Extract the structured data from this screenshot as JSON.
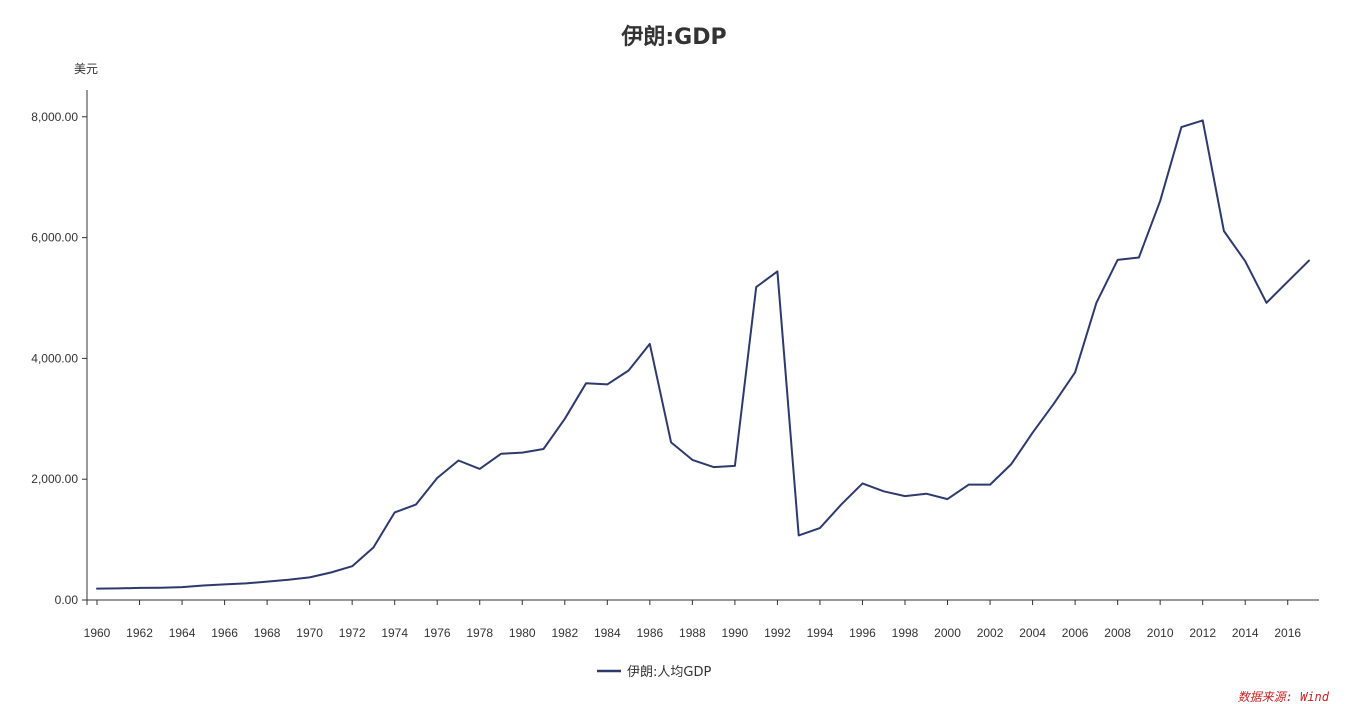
{
  "chart_data": {
    "type": "line",
    "title": "伊朗:GDP",
    "ylabel": "美元",
    "xlabel": "",
    "ylim": [
      0,
      8400
    ],
    "yticks": [
      0,
      2000,
      4000,
      6000,
      8000
    ],
    "ytick_labels": [
      "0.00",
      "2,000.00",
      "4,000.00",
      "6,000.00",
      "8,000.00"
    ],
    "xlim": [
      1960,
      2017
    ],
    "xticks": [
      1960,
      1962,
      1964,
      1966,
      1968,
      1970,
      1972,
      1974,
      1976,
      1978,
      1980,
      1982,
      1984,
      1986,
      1988,
      1990,
      1992,
      1994,
      1996,
      1998,
      2000,
      2002,
      2004,
      2006,
      2008,
      2010,
      2012,
      2014,
      2016
    ],
    "xtick_labels": [
      "1960",
      "1962",
      "1964",
      "1966",
      "1968",
      "1970",
      "1972",
      "1974",
      "1976",
      "1978",
      "1980",
      "1982",
      "1984",
      "1986",
      "1988",
      "1990",
      "1992",
      "1994",
      "1996",
      "1998",
      "2000",
      "2002",
      "2004",
      "2006",
      "2008",
      "2010",
      "2012",
      "2014",
      "2016"
    ],
    "x": [
      1960,
      1961,
      1962,
      1963,
      1964,
      1965,
      1966,
      1967,
      1968,
      1969,
      1970,
      1971,
      1972,
      1973,
      1974,
      1975,
      1976,
      1977,
      1978,
      1979,
      1980,
      1981,
      1982,
      1983,
      1984,
      1985,
      1986,
      1987,
      1988,
      1989,
      1990,
      1991,
      1992,
      1993,
      1994,
      1995,
      1996,
      1997,
      1998,
      1999,
      2000,
      2001,
      2002,
      2003,
      2004,
      2005,
      2006,
      2007,
      2008,
      2009,
      2010,
      2011,
      2012,
      2013,
      2014,
      2015,
      2016,
      2017
    ],
    "series": [
      {
        "name": "伊朗:人均GDP",
        "color": "#2e3a6e",
        "values": [
          188,
          192,
          200,
          204,
          214,
          240,
          258,
          275,
          305,
          335,
          375,
          455,
          560,
          870,
          1450,
          1580,
          2020,
          2310,
          2170,
          2420,
          2440,
          2500,
          3000,
          3590,
          3570,
          3800,
          4240,
          2610,
          2320,
          2200,
          2220,
          5180,
          5440,
          1070,
          1190,
          1580,
          1930,
          1800,
          1720,
          1760,
          1670,
          1910,
          1910,
          2250,
          2770,
          3250,
          3770,
          4920,
          5630,
          5670,
          6610,
          7830,
          7940,
          6110,
          5610,
          4920,
          5270,
          5620
        ]
      }
    ],
    "legend": "bottom-center",
    "grid": false
  },
  "source_note": "数据来源: Wind",
  "source_color": "#cc2222"
}
